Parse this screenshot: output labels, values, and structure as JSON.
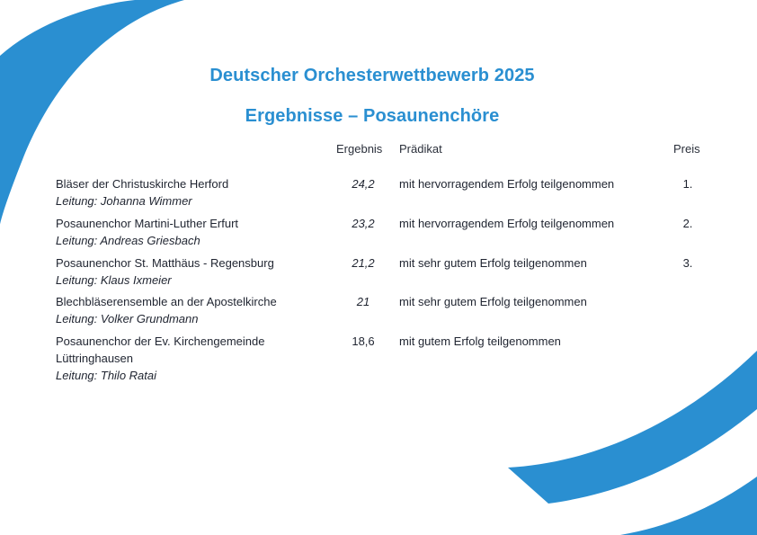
{
  "document": {
    "title": "Deutscher Orchesterwettbewerb 2025",
    "subtitle": "Ergebnisse – Posaunenchöre"
  },
  "table": {
    "headers": {
      "score": "Ergebnis",
      "predicate": "Prädikat",
      "prize": "Preis"
    },
    "rows": [
      {
        "name": "Bläser der Christuskirche Herford",
        "leader": "Leitung: Johanna Wimmer",
        "score": "24,2",
        "predicate": "mit hervorragendem Erfolg teilgenommen",
        "prize": "1."
      },
      {
        "name": "Posaunenchor Martini-Luther Erfurt",
        "leader": "Leitung: Andreas Griesbach",
        "score": "23,2",
        "predicate": "mit hervorragendem Erfolg teilgenommen",
        "prize": "2."
      },
      {
        "name": "Posaunenchor St. Matthäus - Regensburg",
        "leader": "Leitung: Klaus Ixmeier",
        "score": "21,2",
        "predicate": "mit sehr gutem Erfolg teilgenommen",
        "prize": "3."
      },
      {
        "name": "Blechbläserensemble an der Apostelkirche",
        "leader": "Leitung: Volker Grundmann",
        "score": "21",
        "predicate": "mit sehr gutem Erfolg teilgenommen",
        "prize": ""
      },
      {
        "name": "Posaunenchor der Ev. Kirchengemeinde Lüttringhausen",
        "leader": "Leitung: Thilo Ratai",
        "score": "18,6",
        "predicate": "mit gutem Erfolg teilgenommen",
        "prize": ""
      }
    ]
  },
  "colors": {
    "accent": "#2a8fd1",
    "text": "#1f2430"
  }
}
